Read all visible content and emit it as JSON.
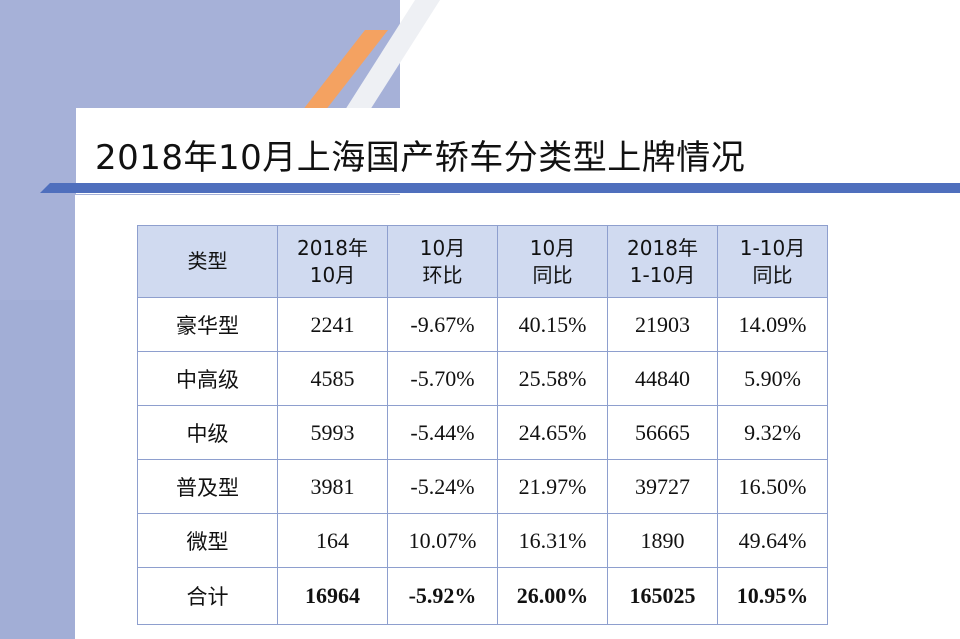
{
  "title": "2018年10月上海国产轿车分类型上牌情况",
  "colors": {
    "background_panel": "#a6b1d8",
    "accent_orange": "#f4a261",
    "accent_blue": "#4f6fbd",
    "header_fill": "#d0daf0",
    "border": "#8e9fce"
  },
  "table": {
    "headers": [
      [
        "类型"
      ],
      [
        "2018年",
        "10月"
      ],
      [
        "10月",
        "环比"
      ],
      [
        "10月",
        "同比"
      ],
      [
        "2018年",
        "1-10月"
      ],
      [
        "1-10月",
        "同比"
      ]
    ],
    "rows": [
      [
        "豪华型",
        "2241",
        "-9.67%",
        "40.15%",
        "21903",
        "14.09%"
      ],
      [
        "中高级",
        "4585",
        "-5.70%",
        "25.58%",
        "44840",
        "5.90%"
      ],
      [
        "中级",
        "5993",
        "-5.44%",
        "24.65%",
        "56665",
        "9.32%"
      ],
      [
        "普及型",
        "3981",
        "-5.24%",
        "21.97%",
        "39727",
        "16.50%"
      ],
      [
        "微型",
        "164",
        "10.07%",
        "16.31%",
        "1890",
        "49.64%"
      ]
    ],
    "total": [
      "合计",
      "16964",
      "-5.92%",
      "26.00%",
      "165025",
      "10.95%"
    ]
  }
}
